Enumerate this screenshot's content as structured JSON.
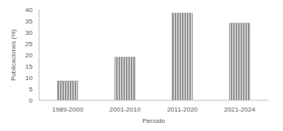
{
  "chart_data": {
    "type": "bar",
    "x_label": "Período",
    "y_label": "Publicaciones (%)",
    "categories": [
      "1989-2000",
      "2001-2010",
      "2011-2020",
      "2021-2024"
    ],
    "values": [
      8.5,
      19,
      38.5,
      34
    ],
    "color": "#7f7f7f",
    "ylim": [
      0,
      40
    ],
    "yticks": [
      0,
      5,
      10,
      15,
      20,
      25,
      30,
      35,
      40
    ],
    "grid": false
  }
}
